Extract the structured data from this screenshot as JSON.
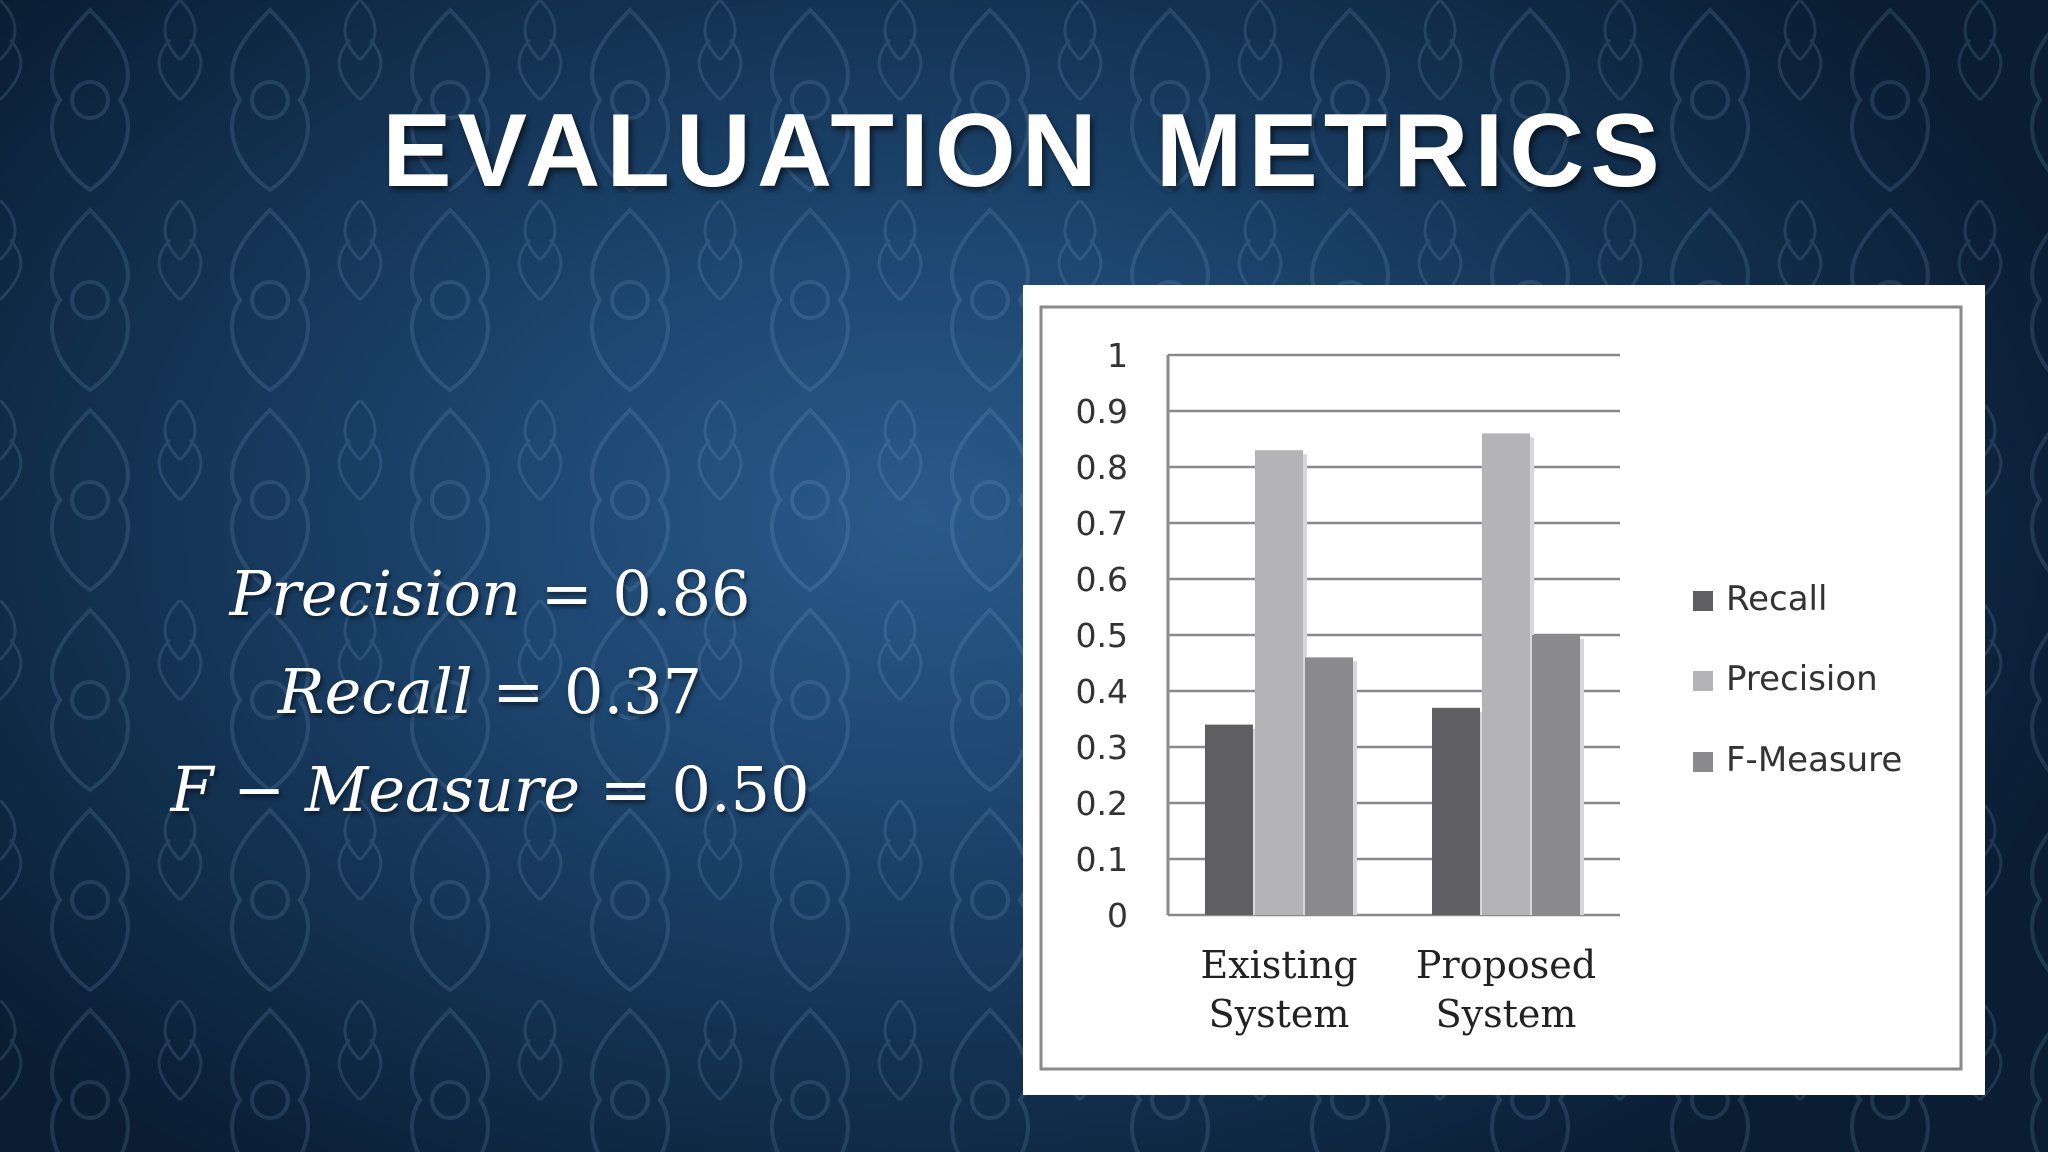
{
  "slide": {
    "title": "EVALUATION  METRICS"
  },
  "formulas": [
    {
      "lhs": "Precision",
      "op": " = ",
      "rhs": "0.86"
    },
    {
      "lhs": "Recall",
      "op": " = ",
      "rhs": "0.37"
    },
    {
      "lhs": "F − Measure",
      "op": " = ",
      "rhs": "0.50"
    }
  ],
  "chart_data": {
    "type": "bar",
    "categories": [
      "Existing System",
      "Proposed System"
    ],
    "category_lines": [
      [
        "Existing",
        "System"
      ],
      [
        "Proposed",
        "System"
      ]
    ],
    "series": [
      {
        "name": "Recall",
        "values": [
          0.34,
          0.37
        ],
        "color": "#5f5f62"
      },
      {
        "name": "Precision",
        "values": [
          0.83,
          0.86
        ],
        "color": "#b4b4b7"
      },
      {
        "name": "F-Measure",
        "values": [
          0.46,
          0.5
        ],
        "color": "#8a8a8d"
      }
    ],
    "yticks": [
      "0",
      "0.1",
      "0.2",
      "0.3",
      "0.4",
      "0.5",
      "0.6",
      "0.7",
      "0.8",
      "0.9",
      "1"
    ],
    "ylim": [
      0,
      1
    ],
    "grid": true,
    "legend": "right",
    "title": "",
    "xlabel": "",
    "ylabel": ""
  }
}
